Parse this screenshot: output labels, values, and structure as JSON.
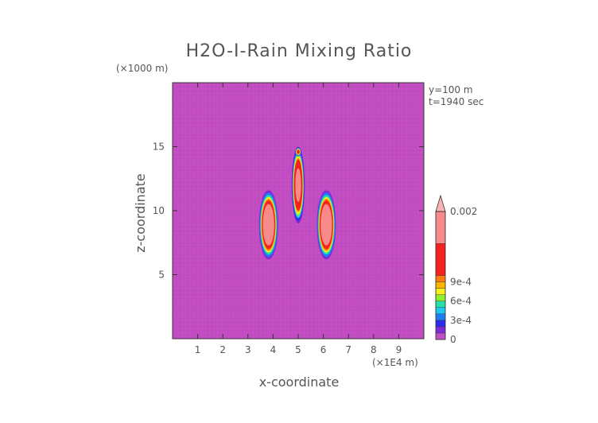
{
  "chart_data": {
    "type": "heatmap",
    "title": "H2O-I-Rain Mixing Ratio",
    "xlabel": "x-coordinate",
    "ylabel": "z-coordinate",
    "x_unit": "(×1E4 m)",
    "y_unit": "(×1000 m)",
    "annotations": [
      "y=100 m",
      "t=1940 sec"
    ],
    "xlim": [
      0,
      10
    ],
    "ylim": [
      0,
      20
    ],
    "x_ticks": [
      "1",
      "2",
      "3",
      "4",
      "5",
      "6",
      "7",
      "8",
      "9"
    ],
    "y_ticks": [
      "5",
      "10",
      "15"
    ],
    "x_tick_values": [
      1,
      2,
      3,
      4,
      5,
      6,
      7,
      8,
      9
    ],
    "y_tick_values": [
      5,
      10,
      15
    ],
    "background_color": "#c44fc4",
    "grid": true,
    "colorbar": {
      "range": [
        0,
        0.002
      ],
      "labels": [
        {
          "text": "0",
          "value": 0
        },
        {
          "text": "3e-4",
          "value": 0.0003
        },
        {
          "text": "6e-4",
          "value": 0.0006
        },
        {
          "text": "9e-4",
          "value": 0.0009
        },
        {
          "text": "0.002",
          "value": 0.002
        }
      ],
      "bands": [
        {
          "from": 0,
          "to": 0.0001,
          "color": "#c44fc4"
        },
        {
          "from": 0.0001,
          "to": 0.0002,
          "color": "#7c2bd6"
        },
        {
          "from": 0.0002,
          "to": 0.0003,
          "color": "#2b2bf0"
        },
        {
          "from": 0.0003,
          "to": 0.0004,
          "color": "#1f7cf5"
        },
        {
          "from": 0.0004,
          "to": 0.0005,
          "color": "#1ec8ee"
        },
        {
          "from": 0.0005,
          "to": 0.0006,
          "color": "#25e0a8"
        },
        {
          "from": 0.0006,
          "to": 0.0007,
          "color": "#8fef2f"
        },
        {
          "from": 0.0007,
          "to": 0.0008,
          "color": "#f5f01e"
        },
        {
          "from": 0.0008,
          "to": 0.0009,
          "color": "#ffb400"
        },
        {
          "from": 0.0009,
          "to": 0.001,
          "color": "#ff7d10"
        },
        {
          "from": 0.001,
          "to": 0.0015,
          "color": "#f52020"
        },
        {
          "from": 0.0015,
          "to": 0.002,
          "color": "#f78a8a"
        }
      ],
      "extend_max_color": "#fbb3b3"
    },
    "features": [
      {
        "name": "left-lobe",
        "x": 3.82,
        "z": 8.9,
        "rx": 0.38,
        "rz": 2.7,
        "peak": 0.002
      },
      {
        "name": "right-lobe",
        "x": 6.12,
        "z": 8.9,
        "rx": 0.38,
        "rz": 2.7,
        "peak": 0.002
      },
      {
        "name": "central-plume",
        "x": 5.0,
        "z": 12.0,
        "rx": 0.26,
        "rz": 3.0,
        "peak": 0.0016
      },
      {
        "name": "top-cap",
        "x": 5.0,
        "z": 14.6,
        "rx": 0.12,
        "rz": 0.35,
        "peak": 0.0011
      }
    ]
  }
}
